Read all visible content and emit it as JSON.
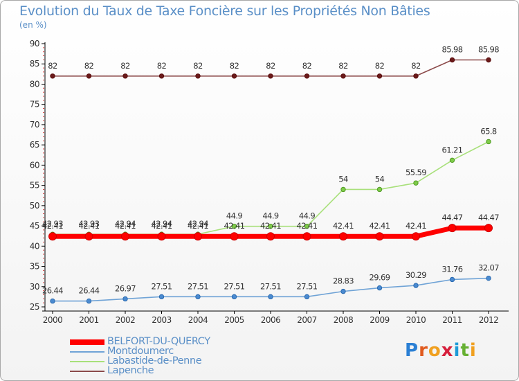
{
  "title": "Evolution du Taux de Taxe Foncière sur les Propriétés Non Bâties",
  "unit": "(en %)",
  "logo": {
    "letters": [
      "P",
      "r",
      "o",
      "x",
      "i",
      "t",
      "i"
    ],
    "colors": [
      "#2a7fd4",
      "#e05a1e",
      "#f0a020",
      "#d61f3c",
      "#1e9bd7",
      "#66b032",
      "#f0a020"
    ]
  },
  "colors": {
    "BELFORT-DU-QUERCY": "#ff0000",
    "Montdoumerc": "#6fa3d6",
    "Labastide-de-Penne": "#a8e07a",
    "Lapenche": "#8b4a4a"
  },
  "chart_data": {
    "type": "line",
    "title": "Evolution du Taux de Taxe Foncière sur les Propriétés Non Bâties",
    "ylabel": "(en %)",
    "xlabel": "",
    "ylim": [
      25,
      90
    ],
    "yticks": [
      25,
      30,
      35,
      40,
      45,
      50,
      55,
      60,
      65,
      70,
      75,
      80,
      85,
      90
    ],
    "x": [
      "2000",
      "2001",
      "2002",
      "2003",
      "2004",
      "2005",
      "2006",
      "2007",
      "2008",
      "2009",
      "2010",
      "2011",
      "2012"
    ],
    "grid": false,
    "legend_position": "bottom-left",
    "series": [
      {
        "name": "Lapenche",
        "values": [
          82,
          82,
          82,
          82,
          82,
          82,
          82,
          82,
          82,
          82,
          82,
          85.98,
          85.98
        ],
        "labels": [
          "82",
          "82",
          "82",
          "82",
          "82",
          "82",
          "82",
          "82",
          "82",
          "82",
          "82",
          "85.98",
          "85.98"
        ]
      },
      {
        "name": "Labastide-de-Penne",
        "values": [
          42.93,
          42.93,
          42.94,
          42.94,
          42.94,
          44.9,
          44.9,
          44.9,
          54,
          54,
          55.59,
          61.21,
          65.8
        ],
        "labels": [
          "42.93",
          "42.93",
          "42.94",
          "42.94",
          "42.94",
          "44.9",
          "44.9",
          "44.9",
          "54",
          "54",
          "55.59",
          "61.21",
          "65.8"
        ]
      },
      {
        "name": "BELFORT-DU-QUERCY",
        "values": [
          42.41,
          42.41,
          42.41,
          42.41,
          42.41,
          42.41,
          42.41,
          42.41,
          42.41,
          42.41,
          42.41,
          44.47,
          44.47
        ],
        "labels": [
          "42.41",
          "42.41",
          "42.41",
          "42.41",
          "42.41",
          "42.41",
          "42.41",
          "42.41",
          "42.41",
          "42.41",
          "42.41",
          "44.47",
          "44.47"
        ]
      },
      {
        "name": "Montdoumerc",
        "values": [
          26.44,
          26.44,
          26.97,
          27.51,
          27.51,
          27.51,
          27.51,
          27.51,
          28.83,
          29.69,
          30.29,
          31.76,
          32.07
        ],
        "labels": [
          "26.44",
          "26.44",
          "26.97",
          "27.51",
          "27.51",
          "27.51",
          "27.51",
          "27.51",
          "28.83",
          "29.69",
          "30.29",
          "31.76",
          "32.07"
        ]
      }
    ],
    "legend": [
      "BELFORT-DU-QUERCY",
      "Montdoumerc",
      "Labastide-de-Penne",
      "Lapenche"
    ]
  }
}
